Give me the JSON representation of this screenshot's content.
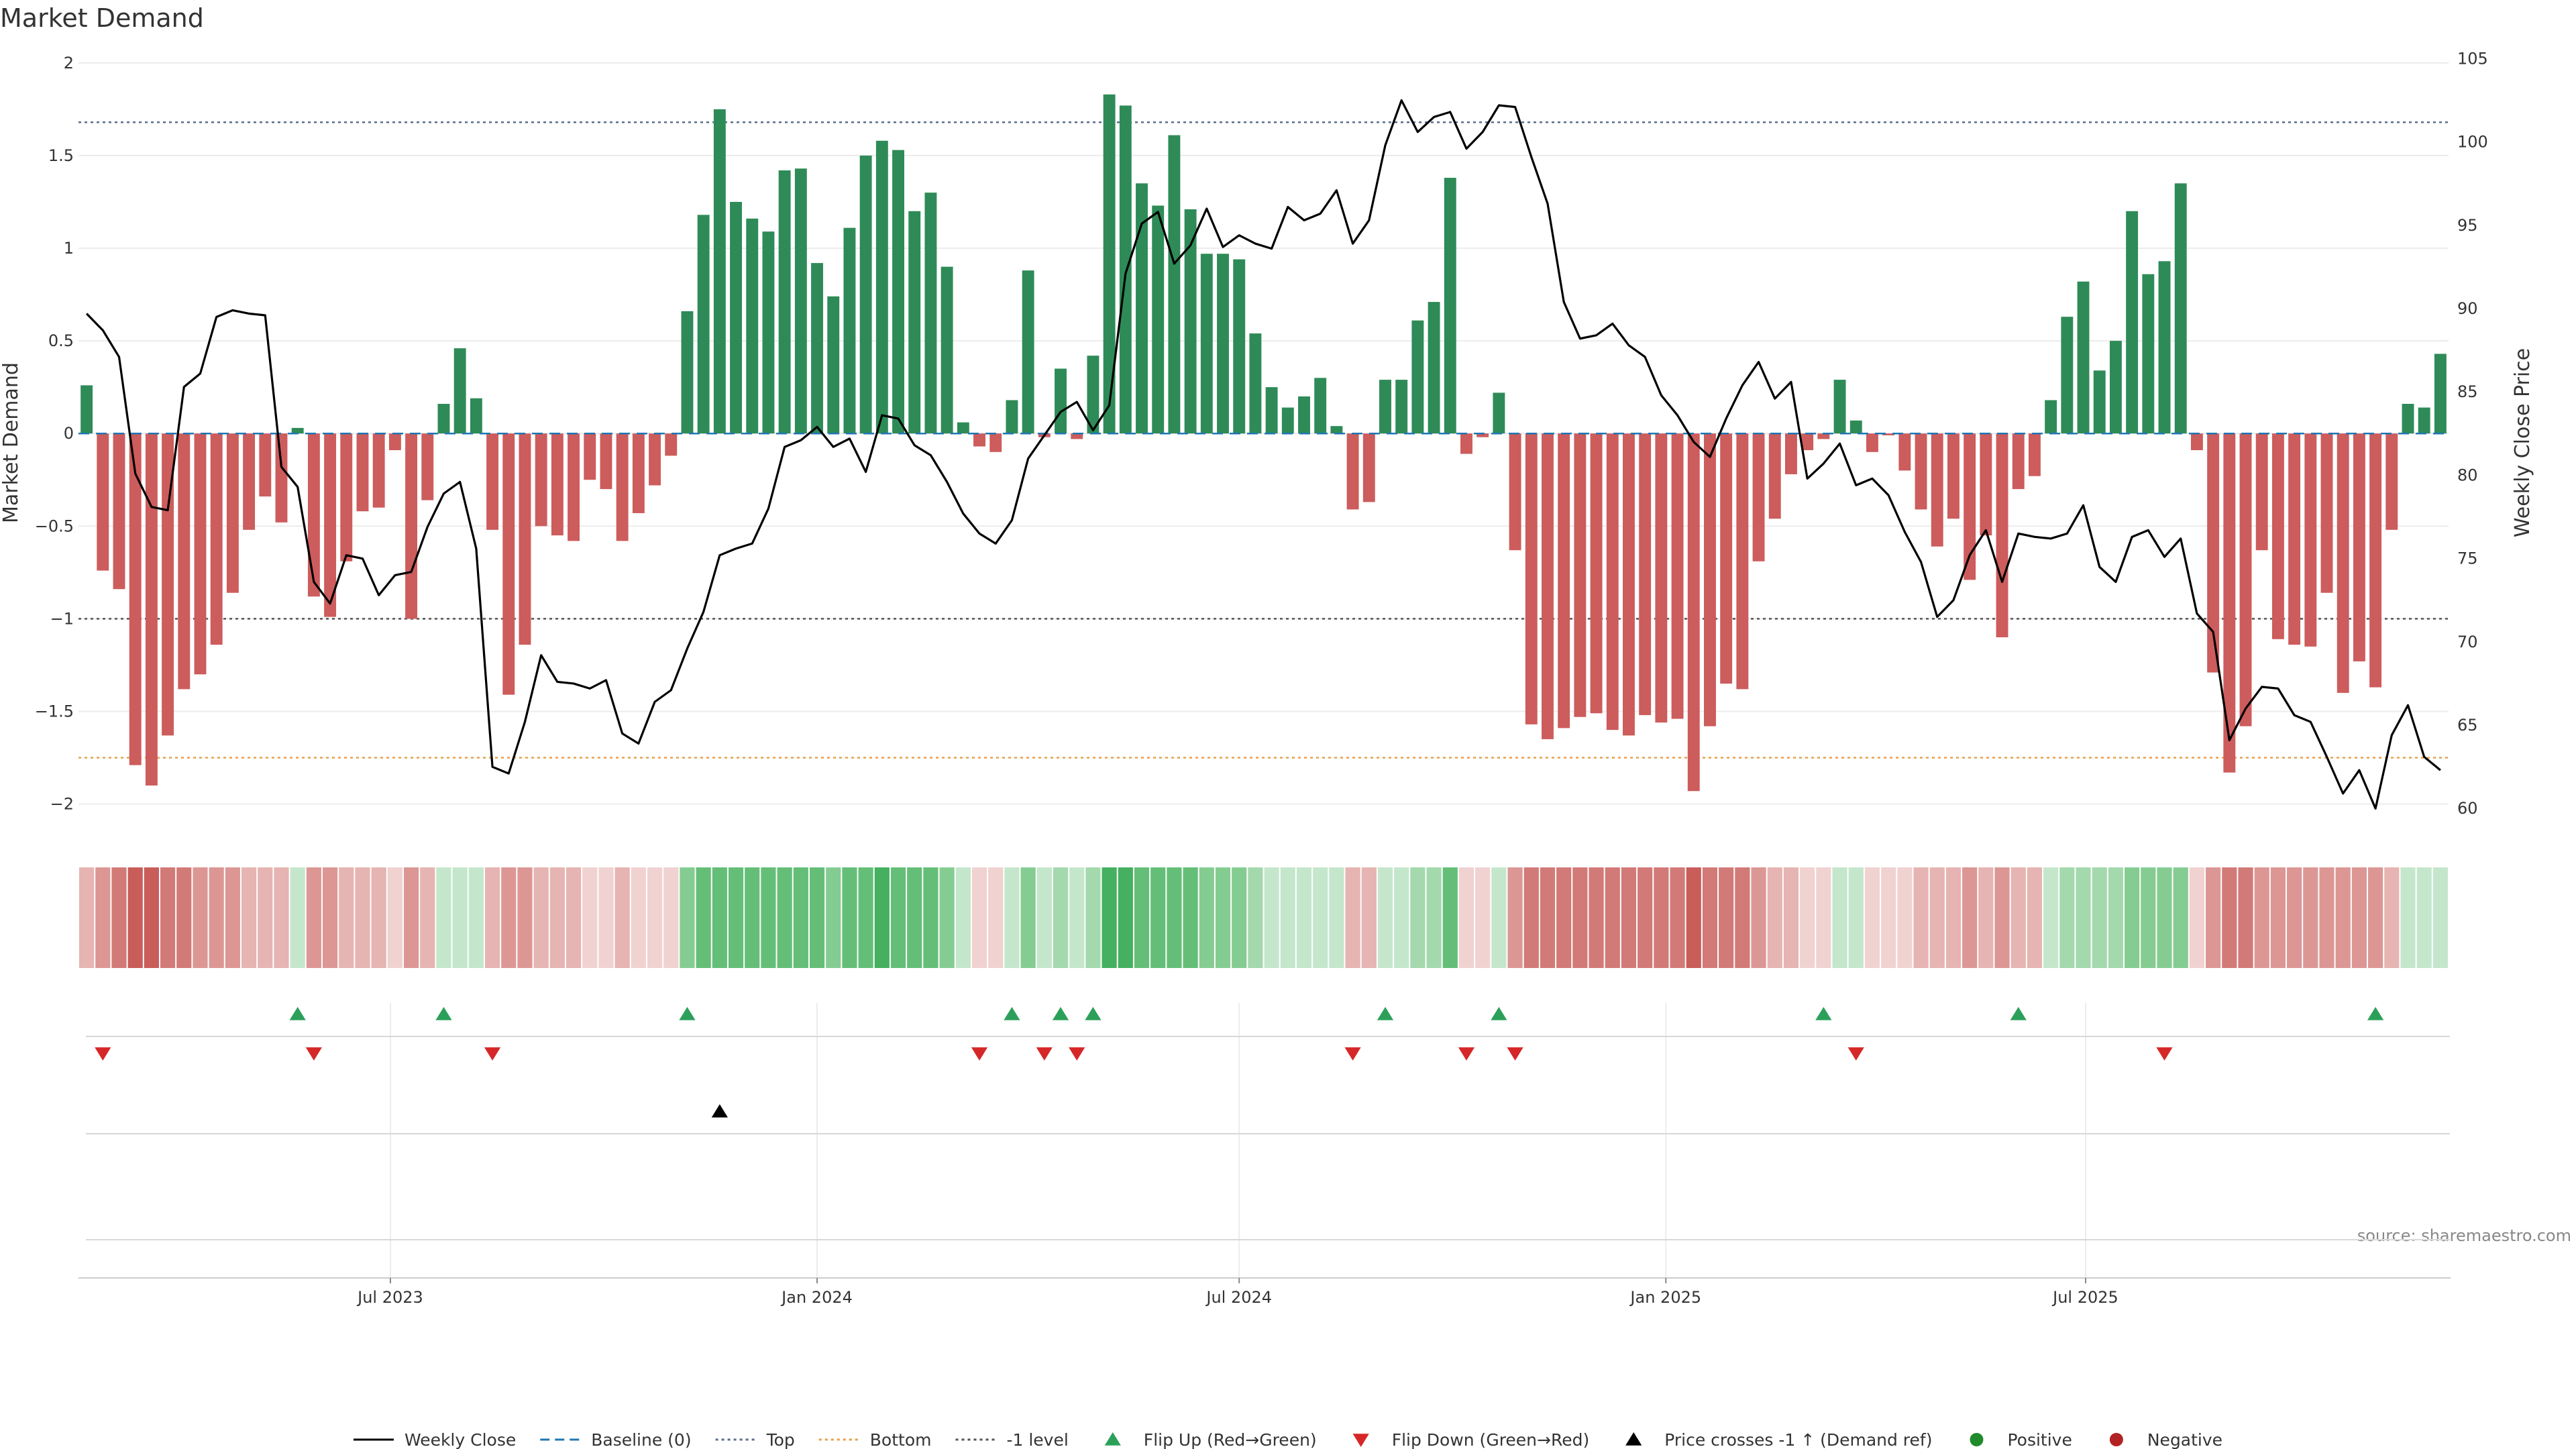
{
  "chart_data": {
    "type": "bar",
    "title": "Market Demand",
    "ylabel": "Market Demand",
    "y2label": "Weekly Close Price",
    "source": "source: sharemaestro.com",
    "ylim": [
      -2.15,
      2.05
    ],
    "y2lim": [
      58.6,
      105.3
    ],
    "y_ticks": [
      2,
      1.5,
      1,
      0.5,
      0,
      -0.5,
      -1,
      -1.5,
      -2
    ],
    "y_tick_labels": [
      "2",
      "1.5",
      "1",
      "0.5",
      "0",
      "−0.5",
      "−1",
      "−1.5",
      "−2"
    ],
    "y2_ticks": [
      105,
      100,
      95,
      90,
      85,
      80,
      75,
      70,
      65,
      60
    ],
    "y2_tick_labels": [
      "105",
      "100",
      "95",
      "90",
      "85",
      "80",
      "75",
      "70",
      "65",
      "60"
    ],
    "x_date_ticks": [
      "Jul 2023",
      "Jan 2024",
      "Jul 2024",
      "Jan 2025",
      "Jul 2025"
    ],
    "reference_levels": {
      "top": 1.68,
      "bottom": -1.75,
      "minus_one": -1.0
    },
    "start_date": "2023-02-20",
    "demand": [
      0.26,
      -0.74,
      -0.84,
      -1.79,
      -1.9,
      -1.63,
      -1.38,
      -1.3,
      -1.14,
      -0.86,
      -0.52,
      -0.34,
      -0.48,
      0.03,
      -0.88,
      -0.99,
      -0.69,
      -0.42,
      -0.4,
      -0.09,
      -1.0,
      -0.36,
      0.16,
      0.46,
      0.19,
      -0.52,
      -1.41,
      -1.14,
      -0.5,
      -0.55,
      -0.58,
      -0.25,
      -0.3,
      -0.58,
      -0.43,
      -0.28,
      -0.12,
      0.66,
      1.18,
      1.75,
      1.25,
      1.16,
      1.09,
      1.42,
      1.43,
      0.92,
      0.74,
      1.11,
      1.5,
      1.58,
      1.53,
      1.2,
      1.3,
      0.9,
      0.06,
      -0.07,
      -0.1,
      0.18,
      0.88,
      -0.02,
      0.35,
      -0.03,
      0.42,
      1.83,
      1.77,
      1.35,
      1.23,
      1.61,
      1.21,
      0.97,
      0.97,
      0.94,
      0.54,
      0.25,
      0.14,
      0.2,
      0.3,
      0.04,
      -0.41,
      -0.37,
      0.29,
      0.29,
      0.61,
      0.71,
      1.38,
      -0.11,
      -0.02,
      0.22,
      -0.63,
      -1.57,
      -1.65,
      -1.59,
      -1.53,
      -1.51,
      -1.6,
      -1.63,
      -1.52,
      -1.56,
      -1.54,
      -1.93,
      -1.58,
      -1.35,
      -1.38,
      -0.69,
      -0.46,
      -0.22,
      -0.09,
      -0.03,
      0.29,
      0.07,
      -0.1,
      -0.01,
      -0.2,
      -0.41,
      -0.61,
      -0.46,
      -0.79,
      -0.55,
      -1.1,
      -0.3,
      -0.23,
      0.18,
      0.63,
      0.82,
      0.34,
      0.5,
      1.2,
      0.86,
      0.93,
      1.35,
      -0.09,
      -1.29,
      -1.83,
      -1.58,
      -0.63,
      -1.11,
      -1.14,
      -1.15,
      -0.86,
      -1.4,
      -1.23,
      -1.37,
      -0.52,
      0.16,
      0.14,
      0.43
    ],
    "weekly_close": [
      89.7,
      88.7,
      87.1,
      80.1,
      78.1,
      77.9,
      85.3,
      86.1,
      89.5,
      89.9,
      89.7,
      89.6,
      80.5,
      79.3,
      73.6,
      72.3,
      75.2,
      75.0,
      72.8,
      74.0,
      74.2,
      76.9,
      78.9,
      79.6,
      75.6,
      62.5,
      62.1,
      65.2,
      69.2,
      67.6,
      67.5,
      67.2,
      67.7,
      64.5,
      63.9,
      66.4,
      67.1,
      69.6,
      71.8,
      75.2,
      75.6,
      75.9,
      78.0,
      81.7,
      82.1,
      82.9,
      81.7,
      82.2,
      80.2,
      83.6,
      83.4,
      81.8,
      81.2,
      79.6,
      77.7,
      76.5,
      75.9,
      77.3,
      81.0,
      82.4,
      83.8,
      84.4,
      82.7,
      84.2,
      92.1,
      95.1,
      95.8,
      92.7,
      93.8,
      96.0,
      93.7,
      94.4,
      93.9,
      93.6,
      96.1,
      95.3,
      95.7,
      97.1,
      93.9,
      95.3,
      99.8,
      102.5,
      100.6,
      101.5,
      101.8,
      99.6,
      100.6,
      102.2,
      102.1,
      99.1,
      96.3,
      90.4,
      88.2,
      88.4,
      89.1,
      87.8,
      87.1,
      84.8,
      83.6,
      82.0,
      81.1,
      83.4,
      85.4,
      86.8,
      84.6,
      85.6,
      79.8,
      80.7,
      81.9,
      79.4,
      79.8,
      78.8,
      76.6,
      74.8,
      71.5,
      72.5,
      75.2,
      76.7,
      73.6,
      76.5,
      76.3,
      76.2,
      76.5,
      78.2,
      74.5,
      73.6,
      76.3,
      76.7,
      75.1,
      76.2,
      71.7,
      70.6,
      64.1,
      66.0,
      67.3,
      67.2,
      65.6,
      65.2,
      63.1,
      60.9,
      62.3,
      60.0,
      64.4,
      66.2,
      63.1,
      62.3
    ],
    "heat_levels": [
      -2,
      -3,
      -4,
      -5,
      -5,
      -4,
      -4,
      -3,
      -3,
      -3,
      -2,
      -2,
      -2,
      1,
      -3,
      -3,
      -2,
      -2,
      -2,
      -1,
      -3,
      -2,
      1,
      1,
      1,
      -2,
      -3,
      -3,
      -2,
      -2,
      -2,
      -1,
      -1,
      -2,
      -1,
      -1,
      -1,
      3,
      4,
      4,
      4,
      4,
      4,
      4,
      4,
      4,
      3,
      4,
      4,
      5,
      4,
      4,
      4,
      3,
      1,
      -1,
      -1,
      1,
      3,
      1,
      2,
      1,
      2,
      5,
      5,
      4,
      4,
      4,
      4,
      3,
      3,
      3,
      2,
      1,
      1,
      1,
      1,
      1,
      -2,
      -2,
      1,
      1,
      2,
      2,
      4,
      -1,
      -1,
      1,
      -3,
      -4,
      -4,
      -4,
      -4,
      -4,
      -4,
      -4,
      -4,
      -4,
      -4,
      -5,
      -4,
      -4,
      -4,
      -3,
      -2,
      -2,
      -1,
      -1,
      1,
      1,
      -1,
      -1,
      -1,
      -2,
      -2,
      -2,
      -3,
      -2,
      -3,
      -2,
      -2,
      1,
      2,
      2,
      2,
      2,
      3,
      3,
      3,
      3,
      -1,
      -3,
      -4,
      -4,
      -3,
      -3,
      -3,
      -3,
      -3,
      -3,
      -3,
      -3,
      -2,
      1,
      1,
      1
    ],
    "flip_up_weeks": [
      13,
      22,
      37,
      57,
      60,
      62,
      80,
      87,
      107,
      119,
      141
    ],
    "flip_down_weeks": [
      1,
      14,
      25,
      55,
      59,
      61,
      78,
      85,
      88,
      109,
      128
    ],
    "cross_up_weeks": [
      39
    ],
    "colors": {
      "positive": "#2e8b57",
      "negative": "#cd5c5c",
      "line": "#000000",
      "baseline": "#1f77b4",
      "top": "#5a6e8c",
      "bottom": "#e6a04a",
      "level": "#555555",
      "flip_up": "#2ca05a",
      "flip_down": "#d62728",
      "cross": "#000000",
      "heat_pos": [
        "#c4e7cc",
        "#a4d9ae",
        "#85cc92",
        "#65be78",
        "#45b060"
      ],
      "heat_neg": [
        "#f0d2d1",
        "#e6b4b2",
        "#dc9795",
        "#d27a77",
        "#c85d5a"
      ]
    },
    "legend": [
      {
        "label": "Weekly Close",
        "symbol": "line"
      },
      {
        "label": "Baseline (0)",
        "symbol": "dash"
      },
      {
        "label": "Top",
        "symbol": "dot"
      },
      {
        "label": "Bottom",
        "symbol": "dot-orange"
      },
      {
        "label": "-1 level",
        "symbol": "dot-gray"
      },
      {
        "label": "Flip Up (Red→Green)",
        "symbol": "tri-up-green"
      },
      {
        "label": "Flip Down (Green→Red)",
        "symbol": "tri-down-red"
      },
      {
        "label": "Price crosses -1 ↑ (Demand ref)",
        "symbol": "tri-up-black"
      },
      {
        "label": "Positive",
        "symbol": "circle-green"
      },
      {
        "label": "Negative",
        "symbol": "circle-red"
      }
    ]
  }
}
